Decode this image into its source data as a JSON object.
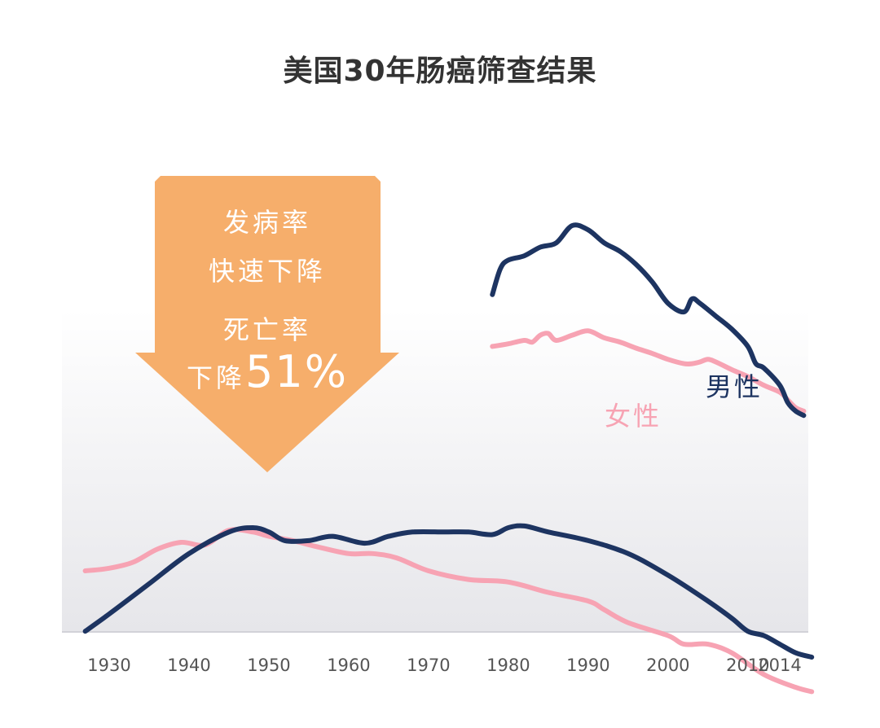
{
  "title": "美国30年肠癌筛查结果",
  "callout": {
    "incidence_line1": "发病率",
    "incidence_line2": "快速下降",
    "mortality_line1": "死亡率",
    "mortality_prefix": "下降",
    "mortality_value": "51%"
  },
  "colors": {
    "male": "#1d3461",
    "female": "#f7a3b3",
    "arrow": "#f6ae6b",
    "title": "#333333"
  },
  "chart_data": {
    "type": "line",
    "x_ticks": [
      "1930",
      "1940",
      "1950",
      "1960",
      "1970",
      "1980",
      "1990",
      "2000",
      "2010",
      "2014"
    ],
    "xlim": [
      1925,
      2016
    ],
    "series": [
      {
        "name": "男性",
        "kind": "incidence",
        "color": "#1d3461",
        "points": [
          [
            1978,
            72
          ],
          [
            1979,
            75
          ],
          [
            1980,
            76
          ],
          [
            1982,
            76.5
          ],
          [
            1984,
            77.5
          ],
          [
            1986,
            78
          ],
          [
            1988,
            80
          ],
          [
            1990,
            79.5
          ],
          [
            1992,
            78
          ],
          [
            1994,
            77
          ],
          [
            1996,
            75.5
          ],
          [
            1998,
            73.5
          ],
          [
            2000,
            71
          ],
          [
            2002,
            70
          ],
          [
            2003,
            71.5
          ],
          [
            2004,
            71
          ],
          [
            2006,
            69.5
          ],
          [
            2008,
            68
          ],
          [
            2010,
            66
          ],
          [
            2011,
            64
          ],
          [
            2012,
            63.5
          ],
          [
            2014,
            61.5
          ],
          [
            2015,
            59.5
          ],
          [
            2016,
            58.5
          ],
          [
            2017,
            58
          ]
        ]
      },
      {
        "name": "女性",
        "kind": "incidence",
        "color": "#f7a3b3",
        "points": [
          [
            1978,
            66
          ],
          [
            1980,
            66.3
          ],
          [
            1982,
            66.7
          ],
          [
            1983,
            66.5
          ],
          [
            1984,
            67.3
          ],
          [
            1985,
            67.5
          ],
          [
            1986,
            66.7
          ],
          [
            1988,
            67.3
          ],
          [
            1990,
            67.8
          ],
          [
            1992,
            67
          ],
          [
            1994,
            66.5
          ],
          [
            1996,
            65.8
          ],
          [
            1998,
            65.2
          ],
          [
            2000,
            64.5
          ],
          [
            2002,
            64
          ],
          [
            2003,
            64
          ],
          [
            2004,
            64.2
          ],
          [
            2005,
            64.5
          ],
          [
            2006,
            64.2
          ],
          [
            2008,
            63.3
          ],
          [
            2010,
            62.5
          ],
          [
            2012,
            61.5
          ],
          [
            2014,
            60.7
          ],
          [
            2015,
            59.8
          ],
          [
            2016,
            58.9
          ],
          [
            2017,
            58.5
          ]
        ]
      },
      {
        "name": "男性",
        "kind": "mortality",
        "color": "#1d3461",
        "points": [
          [
            1927,
            33
          ],
          [
            1930,
            35
          ],
          [
            1935,
            38.5
          ],
          [
            1940,
            42
          ],
          [
            1945,
            44.5
          ],
          [
            1948,
            45
          ],
          [
            1950,
            44.5
          ],
          [
            1952,
            43.5
          ],
          [
            1955,
            43.5
          ],
          [
            1958,
            44
          ],
          [
            1962,
            43.2
          ],
          [
            1965,
            44
          ],
          [
            1968,
            44.5
          ],
          [
            1972,
            44.5
          ],
          [
            1975,
            44.5
          ],
          [
            1978,
            44.2
          ],
          [
            1980,
            45
          ],
          [
            1982,
            45.2
          ],
          [
            1985,
            44.5
          ],
          [
            1990,
            43.5
          ],
          [
            1995,
            42
          ],
          [
            2000,
            39.5
          ],
          [
            2005,
            36.5
          ],
          [
            2008,
            34.5
          ],
          [
            2010,
            33
          ],
          [
            2012,
            32.5
          ],
          [
            2014,
            31.5
          ],
          [
            2016,
            30.5
          ],
          [
            2018,
            30
          ]
        ]
      },
      {
        "name": "女性",
        "kind": "mortality",
        "color": "#f7a3b3",
        "points": [
          [
            1927,
            40
          ],
          [
            1930,
            40.3
          ],
          [
            1933,
            41
          ],
          [
            1936,
            42.5
          ],
          [
            1939,
            43.3
          ],
          [
            1942,
            43
          ],
          [
            1945,
            44.7
          ],
          [
            1948,
            44.5
          ],
          [
            1950,
            44
          ],
          [
            1953,
            43.5
          ],
          [
            1956,
            42.8
          ],
          [
            1960,
            42
          ],
          [
            1963,
            42
          ],
          [
            1966,
            41.5
          ],
          [
            1970,
            40
          ],
          [
            1975,
            39
          ],
          [
            1980,
            38.7
          ],
          [
            1985,
            37.5
          ],
          [
            1990,
            36.5
          ],
          [
            1992,
            35.5
          ],
          [
            1995,
            34
          ],
          [
            2000,
            32.5
          ],
          [
            2002,
            31.5
          ],
          [
            2005,
            31.5
          ],
          [
            2008,
            30.5
          ],
          [
            2012,
            28
          ],
          [
            2016,
            26.5
          ],
          [
            2018,
            26
          ]
        ]
      }
    ],
    "labels": {
      "male": "男性",
      "female": "女性"
    }
  }
}
